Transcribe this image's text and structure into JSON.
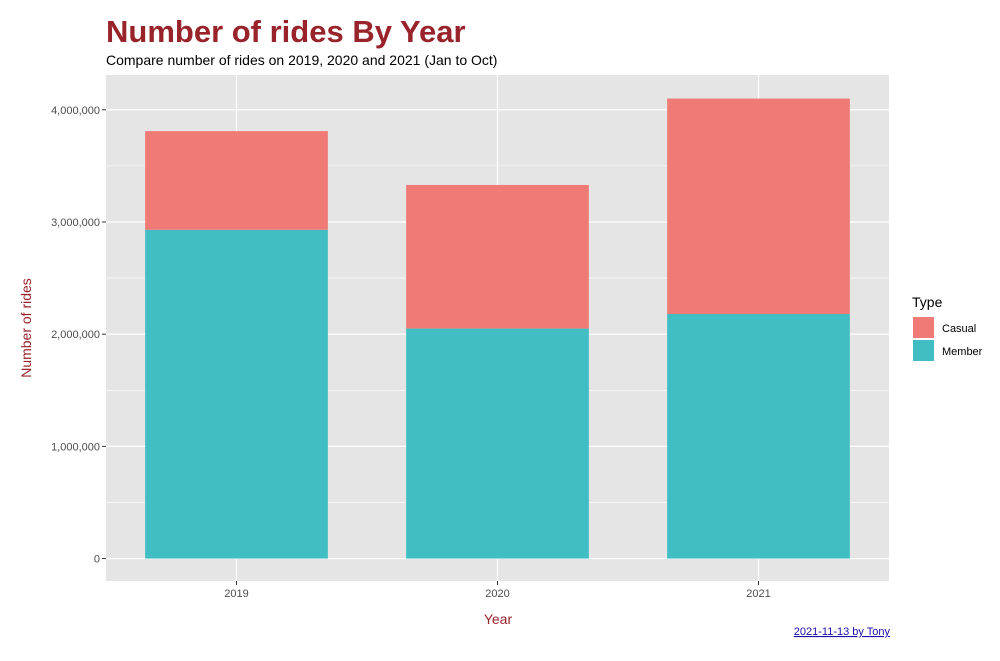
{
  "colors": {
    "title": "#99232a",
    "panel_background": "#e5e5e5",
    "grid": "#ffffff",
    "casual": "#f07a76",
    "member": "#41bec3",
    "caption_link": "#1a0dab"
  },
  "caption": "2021-11-13 by Tony",
  "chart_data": {
    "type": "bar",
    "stacked": true,
    "title": "Number of rides By Year",
    "subtitle": "Compare number of rides on 2019, 2020 and 2021 (Jan to Oct)",
    "xlabel": "Year",
    "ylabel": "Number of rides",
    "categories": [
      "2019",
      "2020",
      "2021"
    ],
    "ylim": [
      -200000,
      4310000
    ],
    "yticks": [
      0,
      1000000,
      2000000,
      3000000,
      4000000
    ],
    "ytick_labels": [
      "0",
      "1,000,000",
      "2,000,000",
      "3,000,000",
      "4,000,000"
    ],
    "grid": true,
    "legend": {
      "title": "Type",
      "placement": "right"
    },
    "series": [
      {
        "name": "Member",
        "values": [
          2930000,
          2050000,
          2180000
        ]
      },
      {
        "name": "Casual",
        "values": [
          880000,
          1280000,
          1920000
        ]
      }
    ]
  }
}
